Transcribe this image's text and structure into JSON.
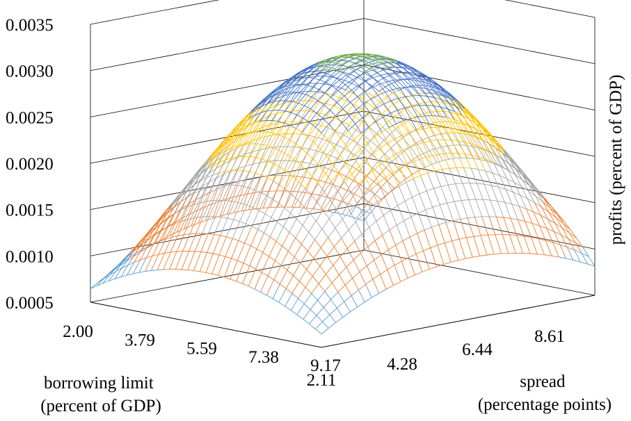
{
  "chart_data": {
    "type": "surface",
    "title": "",
    "zlabel": "profits (percent of GDP)",
    "xlabel": [
      "borrowing limit",
      "(percent of GDP)"
    ],
    "ylabel": [
      "spread",
      "(percentage points)"
    ],
    "z_ticks": [
      "0.0035",
      "0.0030",
      "0.0025",
      "0.0020",
      "0.0015",
      "0.0010",
      "0.0005"
    ],
    "zlim": [
      0.0005,
      0.0035
    ],
    "x_ticks": [
      "2.00",
      "3.79",
      "5.59",
      "7.38",
      "9.17"
    ],
    "y_ticks": [
      "2.11",
      "4.28",
      "6.44",
      "8.61"
    ],
    "xlim": [
      2.0,
      9.17
    ],
    "ylim": [
      2.11,
      10.0
    ],
    "peak": {
      "borrowing_limit": 5.59,
      "spread": 6.44,
      "profits": 0.0031
    },
    "band_colors": {
      "0.0005-0.0010": "#5b9bd5",
      "0.0010-0.0015": "#ed7d31",
      "0.0015-0.0020": "#a5a5a5",
      "0.0020-0.0025": "#ffc000",
      "0.0025-0.0030": "#4472c4",
      "0.0030-0.0035": "#70ad47"
    },
    "grid": true,
    "legend": "none"
  }
}
